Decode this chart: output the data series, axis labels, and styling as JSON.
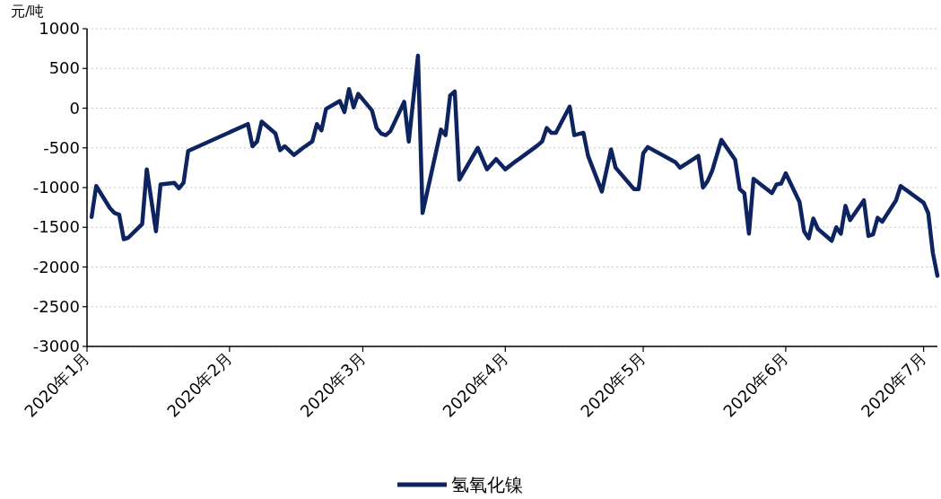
{
  "chart_data": {
    "type": "line",
    "ylabel": "元/吨",
    "x": [
      "2020-01-02",
      "2020-01-03",
      "2020-01-06",
      "2020-01-07",
      "2020-01-08",
      "2020-01-09",
      "2020-01-10",
      "2020-01-13",
      "2020-01-14",
      "2020-01-16",
      "2020-01-17",
      "2020-01-20",
      "2020-01-21",
      "2020-01-22",
      "2020-01-23",
      "2020-02-05",
      "2020-02-06",
      "2020-02-07",
      "2020-02-08",
      "2020-02-11",
      "2020-02-12",
      "2020-02-13",
      "2020-02-15",
      "2020-02-17",
      "2020-02-19",
      "2020-02-20",
      "2020-02-21",
      "2020-02-22",
      "2020-02-25",
      "2020-02-26",
      "2020-02-27",
      "2020-02-28",
      "2020-02-29",
      "2020-03-03",
      "2020-03-04",
      "2020-03-05",
      "2020-03-06",
      "2020-03-07",
      "2020-03-10",
      "2020-03-11",
      "2020-03-13",
      "2020-03-14",
      "2020-03-18",
      "2020-03-19",
      "2020-03-20",
      "2020-03-21",
      "2020-03-22",
      "2020-03-26",
      "2020-03-28",
      "2020-03-30",
      "2020-04-01",
      "2020-04-03",
      "2020-04-04",
      "2020-04-08",
      "2020-04-09",
      "2020-04-10",
      "2020-04-11",
      "2020-04-12",
      "2020-04-15",
      "2020-04-16",
      "2020-04-18",
      "2020-04-19",
      "2020-04-22",
      "2020-04-24",
      "2020-04-25",
      "2020-04-29",
      "2020-04-30",
      "2020-05-01",
      "2020-05-02",
      "2020-05-08",
      "2020-05-09",
      "2020-05-13",
      "2020-05-14",
      "2020-05-15",
      "2020-05-16",
      "2020-05-18",
      "2020-05-21",
      "2020-05-22",
      "2020-05-23",
      "2020-05-24",
      "2020-05-25",
      "2020-05-29",
      "2020-05-30",
      "2020-05-31",
      "2020-06-01",
      "2020-06-04",
      "2020-06-05",
      "2020-06-06",
      "2020-06-07",
      "2020-06-08",
      "2020-06-11",
      "2020-06-12",
      "2020-06-13",
      "2020-06-14",
      "2020-06-15",
      "2020-06-18",
      "2020-06-19",
      "2020-06-20",
      "2020-06-21",
      "2020-06-22",
      "2020-06-25",
      "2020-06-26",
      "2020-07-01",
      "2020-07-02",
      "2020-07-03",
      "2020-07-04"
    ],
    "series": [
      {
        "name": "氢氧化镍",
        "color": "#0d2461",
        "values": [
          -1370,
          -980,
          -1260,
          -1320,
          -1340,
          -1650,
          -1630,
          -1460,
          -770,
          -1550,
          -960,
          -940,
          -1010,
          -940,
          -540,
          -200,
          -480,
          -420,
          -170,
          -320,
          -530,
          -480,
          -590,
          -500,
          -420,
          -200,
          -280,
          -10,
          90,
          -50,
          240,
          10,
          180,
          -30,
          -250,
          -320,
          -340,
          -290,
          80,
          -420,
          660,
          -1320,
          -270,
          -340,
          160,
          210,
          -900,
          -500,
          -770,
          -640,
          -770,
          -680,
          -640,
          -470,
          -420,
          -250,
          -310,
          -310,
          20,
          -340,
          -310,
          -600,
          -1050,
          -520,
          -750,
          -1020,
          -1020,
          -570,
          -490,
          -680,
          -750,
          -600,
          -1000,
          -920,
          -790,
          -400,
          -650,
          -1020,
          -1070,
          -1580,
          -890,
          -1070,
          -960,
          -950,
          -820,
          -1180,
          -1550,
          -1640,
          -1390,
          -1520,
          -1670,
          -1500,
          -1580,
          -1230,
          -1410,
          -1160,
          -1610,
          -1590,
          -1380,
          -1430,
          -1160,
          -980,
          -1190,
          -1320,
          -1820,
          -2110
        ]
      }
    ],
    "xlim": [
      "2020-01-01",
      "2020-07-04"
    ],
    "xticks": [
      {
        "value": "2020-01-01",
        "label": "2020年1月"
      },
      {
        "value": "2020-02-01",
        "label": "2020年2月"
      },
      {
        "value": "2020-03-01",
        "label": "2020年3月"
      },
      {
        "value": "2020-04-01",
        "label": "2020年4月"
      },
      {
        "value": "2020-05-01",
        "label": "2020年5月"
      },
      {
        "value": "2020-06-01",
        "label": "2020年6月"
      },
      {
        "value": "2020-07-01",
        "label": "2020年7月"
      }
    ],
    "ylim": [
      -3000,
      1000
    ],
    "yticks": [
      -3000,
      -2500,
      -2000,
      -1500,
      -1000,
      -500,
      0,
      500,
      1000
    ],
    "grid": "y",
    "legend": "bottom",
    "marker": "none",
    "line_style": "solid"
  }
}
